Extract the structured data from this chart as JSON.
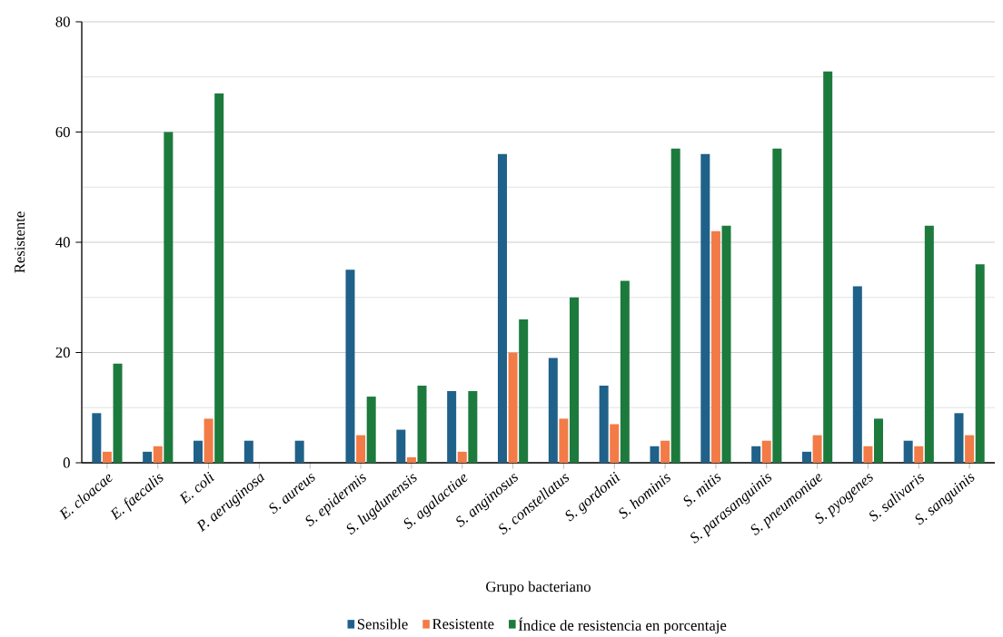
{
  "chart_data": {
    "type": "bar",
    "xlabel": "Grupo bacteriano",
    "ylabel": "Resistente",
    "categories": [
      "E. cloacae",
      "E. faecalis",
      "E. coli",
      "P. aeruginosa",
      "S. aureus",
      "S. epidermis",
      "S. lugdunensis",
      "S. agalactiae",
      "S. anginosus",
      "S. constellatus",
      "S. gordonii",
      "S. hominis",
      "S. mitis",
      "S. parasanguinis",
      "S. pneumoniae",
      "S. pyogenes",
      "S. salivaris",
      "S. sanguinis"
    ],
    "series": [
      {
        "name": "Sensible",
        "color": "#1f6189",
        "values": [
          9,
          2,
          4,
          4,
          4,
          35,
          6,
          13,
          56,
          19,
          14,
          3,
          56,
          3,
          2,
          32,
          4,
          9
        ]
      },
      {
        "name": "Resistente",
        "color": "#f27b47",
        "values": [
          2,
          3,
          8,
          0,
          0,
          5,
          1,
          2,
          20,
          8,
          7,
          4,
          42,
          4,
          5,
          3,
          3,
          5
        ]
      },
      {
        "name": "Índice de resistencia en porcentaje",
        "color": "#1c7a3d",
        "values": [
          18,
          60,
          67,
          0,
          0,
          12,
          14,
          13,
          26,
          30,
          33,
          57,
          43,
          57,
          71,
          8,
          43,
          36
        ]
      }
    ],
    "ylim": [
      0,
      80
    ],
    "yticks": [
      0,
      20,
      40,
      60,
      80
    ],
    "grid": "y",
    "legend": "bottom"
  }
}
